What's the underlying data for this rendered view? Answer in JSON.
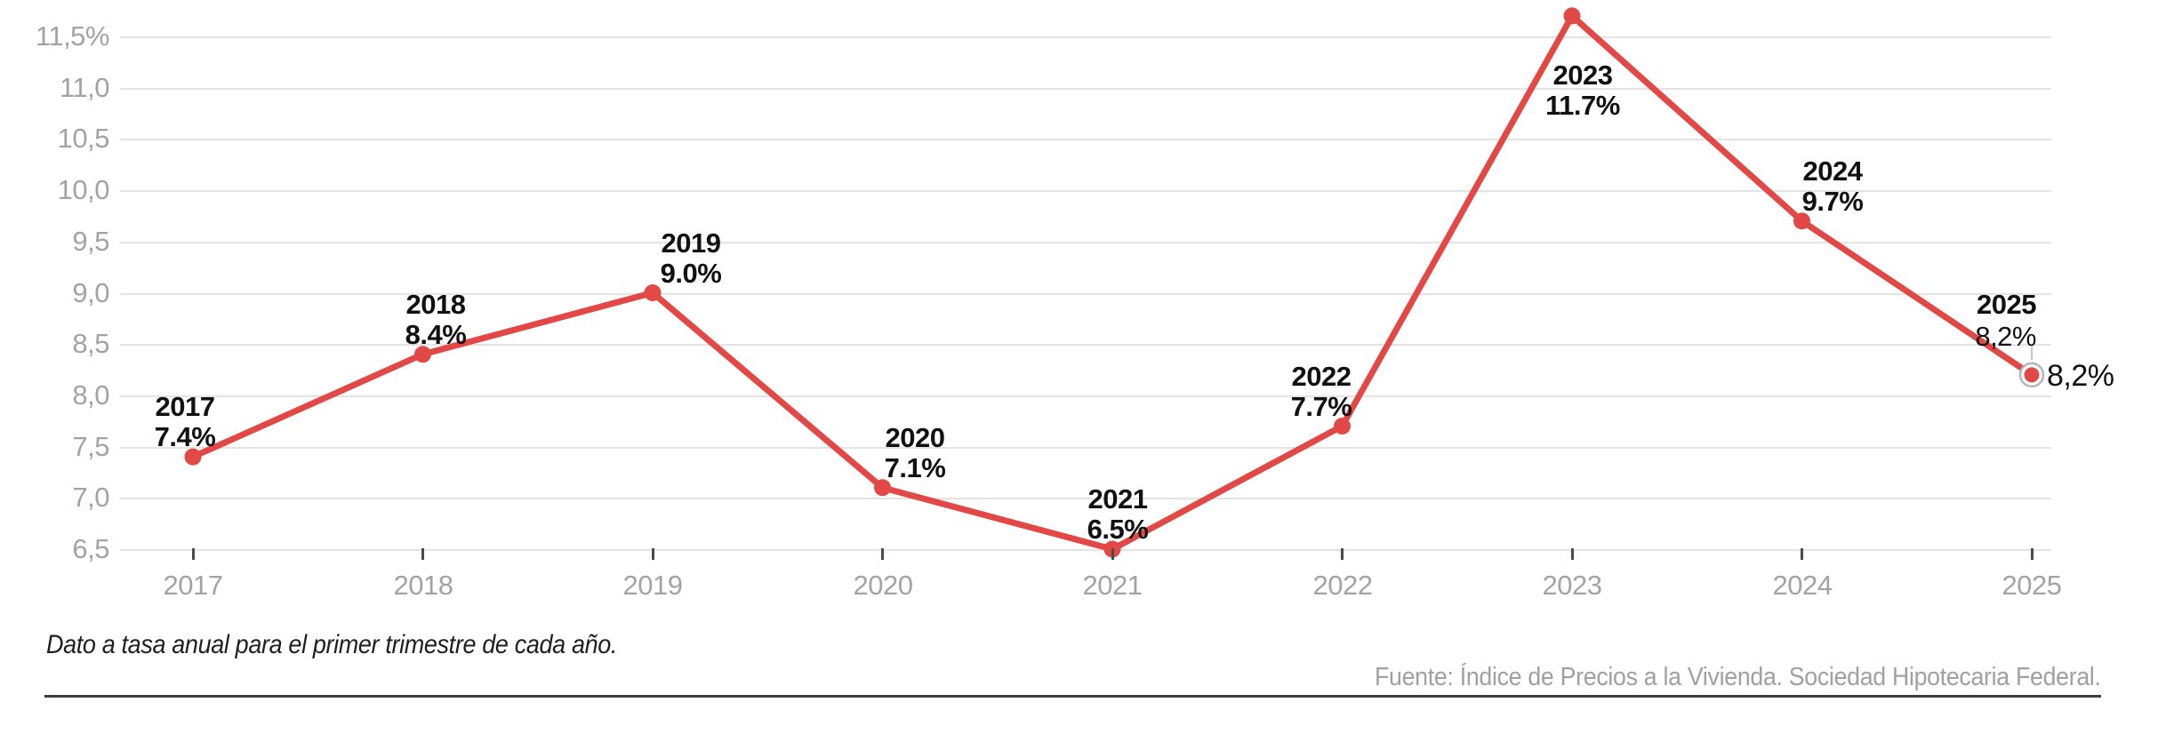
{
  "chart_data": {
    "type": "line",
    "title": "",
    "x": [
      "2017",
      "2018",
      "2019",
      "2020",
      "2021",
      "2022",
      "2023",
      "2024",
      "2025"
    ],
    "values": [
      7.4,
      8.4,
      9.0,
      7.1,
      6.5,
      7.7,
      11.7,
      9.7,
      8.2
    ],
    "point_labels": [
      {
        "year": "2017",
        "value": "7.4%"
      },
      {
        "year": "2018",
        "value": "8.4%"
      },
      {
        "year": "2019",
        "value": "9.0%"
      },
      {
        "year": "2020",
        "value": "7.1%"
      },
      {
        "year": "2021",
        "value": "6.5%"
      },
      {
        "year": "2022",
        "value": "7.7%"
      },
      {
        "year": "2023",
        "value": "11.7%"
      },
      {
        "year": "2024",
        "value": "9.7%"
      },
      {
        "year": "2025",
        "value": "8,2%"
      }
    ],
    "end_point_callout": "8,2%",
    "y_axis": {
      "ticks": [
        {
          "label": "11,5%",
          "value": 11.5
        },
        {
          "label": "11,0",
          "value": 11.0
        },
        {
          "label": "10,5",
          "value": 10.5
        },
        {
          "label": "10,0",
          "value": 10.0
        },
        {
          "label": "9,5",
          "value": 9.5
        },
        {
          "label": "9,0",
          "value": 9.0
        },
        {
          "label": "8,5",
          "value": 8.5
        },
        {
          "label": "8,0",
          "value": 8.0
        },
        {
          "label": "7,5",
          "value": 7.5
        },
        {
          "label": "7,0",
          "value": 7.0
        },
        {
          "label": "6,5",
          "value": 6.5
        }
      ]
    },
    "x_axis": {
      "ticks": [
        "2017",
        "2018",
        "2019",
        "2020",
        "2021",
        "2022",
        "2023",
        "2024",
        "2025"
      ]
    },
    "ylim": [
      6.5,
      11.7
    ],
    "grid": true,
    "legend": "none",
    "colors": {
      "line": "#e24845",
      "grid": "#e4e4e4",
      "axis_text": "#a3a3a3",
      "label_text": "#111111",
      "tick_mark": "#4a4a4a",
      "callout_ring": "#b5b5b5",
      "leader": "#c6c6c6",
      "footnote_text": "#1f1f1f",
      "source_text": "#a0a0a0",
      "rule": "#3d3d3d"
    }
  },
  "footnote": "Dato a tasa anual para el primer trimestre de cada año.",
  "source": "Fuente: Índice de Precios a la Vivienda. Sociedad Hipotecaria Federal."
}
